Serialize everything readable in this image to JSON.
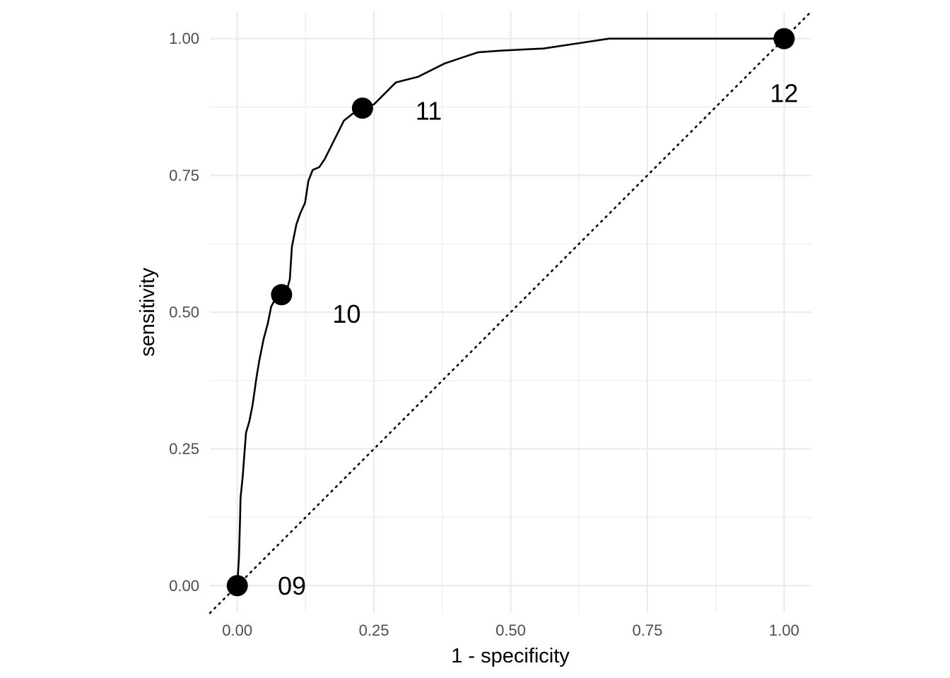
{
  "chart_data": {
    "type": "line",
    "title": "",
    "xlabel": "1 - specificity",
    "ylabel": "sensitivity",
    "xlim": [
      -0.05,
      1.05
    ],
    "ylim": [
      -0.05,
      1.05
    ],
    "grid": true,
    "x_ticks": [
      {
        "value": 0,
        "label": "0.00"
      },
      {
        "value": 0.25,
        "label": "0.25"
      },
      {
        "value": 0.5,
        "label": "0.50"
      },
      {
        "value": 0.75,
        "label": "0.75"
      },
      {
        "value": 1,
        "label": "1.00"
      }
    ],
    "y_ticks": [
      {
        "value": 0,
        "label": "0.00"
      },
      {
        "value": 0.25,
        "label": "0.25"
      },
      {
        "value": 0.5,
        "label": "0.50"
      },
      {
        "value": 0.75,
        "label": "0.75"
      },
      {
        "value": 1,
        "label": "1.00"
      }
    ],
    "reference_line": {
      "style": "dotted",
      "from": [
        -0.05,
        -0.05
      ],
      "to": [
        1.05,
        1.05
      ]
    },
    "curve": [
      [
        0.0,
        0.0
      ],
      [
        0.003,
        0.05
      ],
      [
        0.005,
        0.12
      ],
      [
        0.006,
        0.16
      ],
      [
        0.01,
        0.2
      ],
      [
        0.013,
        0.24
      ],
      [
        0.016,
        0.28
      ],
      [
        0.022,
        0.3
      ],
      [
        0.028,
        0.33
      ],
      [
        0.035,
        0.38
      ],
      [
        0.04,
        0.41
      ],
      [
        0.048,
        0.45
      ],
      [
        0.056,
        0.48
      ],
      [
        0.062,
        0.51
      ],
      [
        0.07,
        0.525
      ],
      [
        0.081,
        0.532
      ],
      [
        0.092,
        0.545
      ],
      [
        0.096,
        0.56
      ],
      [
        0.1,
        0.62
      ],
      [
        0.108,
        0.66
      ],
      [
        0.115,
        0.68
      ],
      [
        0.124,
        0.7
      ],
      [
        0.13,
        0.74
      ],
      [
        0.138,
        0.76
      ],
      [
        0.15,
        0.765
      ],
      [
        0.16,
        0.78
      ],
      [
        0.17,
        0.8
      ],
      [
        0.185,
        0.83
      ],
      [
        0.195,
        0.85
      ],
      [
        0.21,
        0.862
      ],
      [
        0.229,
        0.873
      ],
      [
        0.25,
        0.88
      ],
      [
        0.27,
        0.9
      ],
      [
        0.29,
        0.92
      ],
      [
        0.31,
        0.925
      ],
      [
        0.33,
        0.93
      ],
      [
        0.36,
        0.945
      ],
      [
        0.38,
        0.955
      ],
      [
        0.41,
        0.965
      ],
      [
        0.44,
        0.975
      ],
      [
        0.48,
        0.978
      ],
      [
        0.52,
        0.98
      ],
      [
        0.56,
        0.982
      ],
      [
        0.6,
        0.988
      ],
      [
        0.64,
        0.994
      ],
      [
        0.68,
        1.0
      ],
      [
        1.0,
        1.0
      ]
    ],
    "points": [
      {
        "x": 0.0,
        "y": 0.0,
        "label": "09",
        "label_x": 0.1,
        "label_y": 0.0
      },
      {
        "x": 0.081,
        "y": 0.532,
        "label": "10",
        "label_x": 0.2,
        "label_y": 0.497
      },
      {
        "x": 0.229,
        "y": 0.873,
        "label": "11",
        "label_x": 0.35,
        "label_y": 0.868
      },
      {
        "x": 1.0,
        "y": 1.0,
        "label": "12",
        "label_x": 1.0,
        "label_y": 0.9
      }
    ]
  }
}
